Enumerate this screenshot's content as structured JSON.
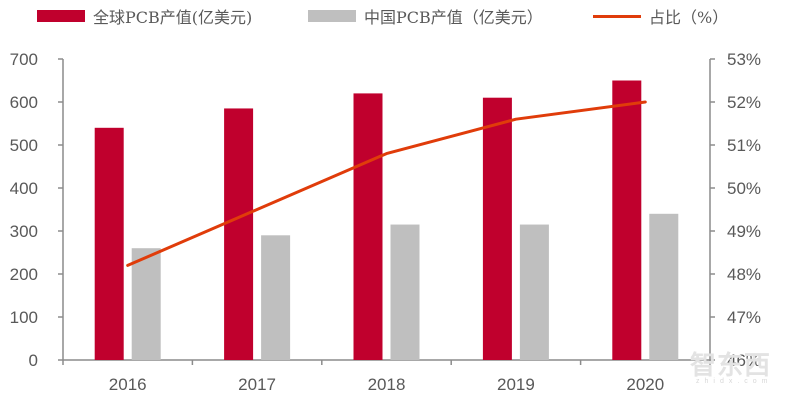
{
  "legend": {
    "global_label": "全球PCB产值(亿美元)",
    "china_label": "中国PCB产值（亿美元）",
    "ratio_label": "占比（%）"
  },
  "colors": {
    "global": "#C0002D",
    "china": "#BFBFBF",
    "ratio": "#E03C0A",
    "axis": "#8C8C8C",
    "tick_text": "#595959"
  },
  "watermark": {
    "text": "智东西",
    "sub": "zhidx.com"
  },
  "chart_data": {
    "type": "bar",
    "title": "",
    "categories": [
      "2016",
      "2017",
      "2018",
      "2019",
      "2020"
    ],
    "series": [
      {
        "name": "全球PCB产值(亿美元)",
        "type": "bar",
        "axis": "left",
        "values": [
          540,
          585,
          620,
          610,
          650
        ]
      },
      {
        "name": "中国PCB产值（亿美元）",
        "type": "bar",
        "axis": "left",
        "values": [
          260,
          290,
          315,
          315,
          340
        ]
      },
      {
        "name": "占比（%）",
        "type": "line",
        "axis": "right",
        "values": [
          48.2,
          49.5,
          50.8,
          51.6,
          52.0
        ]
      }
    ],
    "xlabel": "",
    "ylabel": "",
    "ylim": [
      0,
      700
    ],
    "yticks": [
      "0",
      "100",
      "200",
      "300",
      "400",
      "500",
      "600",
      "700"
    ],
    "y2lim": [
      46,
      53
    ],
    "y2ticks": [
      "46%",
      "47%",
      "48%",
      "49%",
      "50%",
      "51%",
      "52%",
      "53%"
    ],
    "grid": false,
    "legend_position": "top"
  }
}
